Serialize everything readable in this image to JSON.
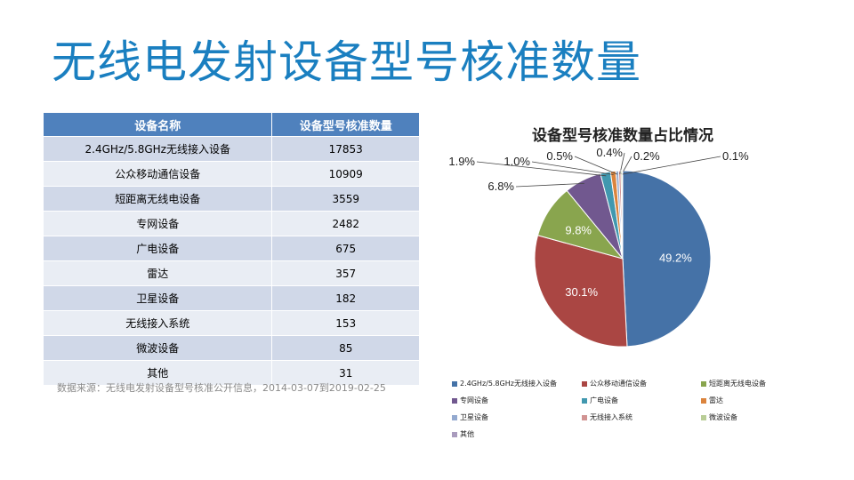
{
  "title": "无线电发射设备型号核准数量",
  "table": {
    "headers": [
      "设备名称",
      "设备型号核准数量"
    ],
    "rows": [
      [
        "2.4GHz/5.8GHz无线接入设备",
        "17853"
      ],
      [
        "公众移动通信设备",
        "10909"
      ],
      [
        "短距离无线电设备",
        "3559"
      ],
      [
        "专网设备",
        "2482"
      ],
      [
        "广电设备",
        "675"
      ],
      [
        "雷达",
        "357"
      ],
      [
        "卫星设备",
        "182"
      ],
      [
        "无线接入系统",
        "153"
      ],
      [
        "微波设备",
        "85"
      ],
      [
        "其他",
        "31"
      ]
    ]
  },
  "source": "数据来源：无线电发射设备型号核准公开信息，2014-03-07到2019-02-25",
  "chart_data": {
    "type": "pie",
    "title": "设备型号核准数量占比情况",
    "categories": [
      "2.4GHz/5.8GHz无线接入设备",
      "公众移动通信设备",
      "短距离无线电设备",
      "专网设备",
      "广电设备",
      "雷达",
      "卫星设备",
      "无线接入系统",
      "微波设备",
      "其他"
    ],
    "values": [
      17853,
      10909,
      3559,
      2482,
      675,
      357,
      182,
      153,
      85,
      31
    ],
    "data_labels": [
      "49.2%",
      "30.1%",
      "9.8%",
      "6.8%",
      "1.9%",
      "1.0%",
      "0.5%",
      "0.4%",
      "0.2%",
      "0.1%"
    ],
    "colors": [
      "#4572a7",
      "#aa4643",
      "#89a54e",
      "#71588f",
      "#4198af",
      "#db843d",
      "#93a9cf",
      "#d19392",
      "#b9cd96",
      "#a99bbd"
    ],
    "legend_position": "bottom"
  }
}
